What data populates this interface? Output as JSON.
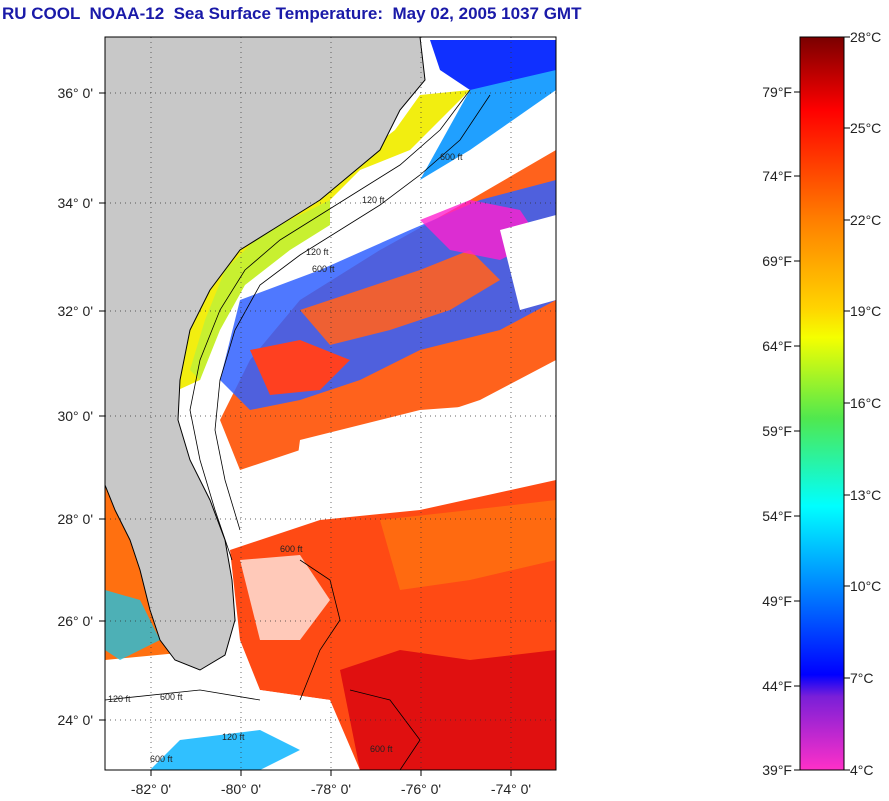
{
  "title": "RU COOL  NOAA-12  Sea Surface Temperature:  May 02, 2005 1037 GMT",
  "map": {
    "lon_range": [
      -83,
      -73
    ],
    "lat_range": [
      23,
      37
    ],
    "lon_ticks": [
      "-82° 0'",
      "-80° 0'",
      "-78° 0'",
      "-76° 0'",
      "-74° 0'"
    ],
    "lat_ticks": [
      "36° 0'",
      "34° 0'",
      "32° 0'",
      "30° 0'",
      "28° 0'",
      "26° 0'",
      "24° 0'"
    ],
    "depth_labels": [
      "120 ft",
      "600 ft",
      "120 ft",
      "600 ft",
      "120 ft",
      "600 ft",
      "600 ft",
      "120 ft",
      "600 ft",
      "600 ft"
    ],
    "colors": {
      "land": "#c8c8c8",
      "cloud": "#ffffff",
      "grid": "#555555"
    }
  },
  "colorbar": {
    "celsius_labels": [
      "28°C",
      "25°C",
      "22°C",
      "19°C",
      "16°C",
      "13°C",
      "10°C",
      "7°C",
      "4°C"
    ],
    "fahrenheit_labels": [
      "79°F",
      "74°F",
      "69°F",
      "64°F",
      "59°F",
      "54°F",
      "49°F",
      "44°F",
      "39°F"
    ],
    "colors": [
      "#7a0000",
      "#ff0000",
      "#ff7f00",
      "#ffd400",
      "#f5ff00",
      "#2ee87a",
      "#00ffff",
      "#0070ff",
      "#0000ff",
      "#ff00ff",
      "#ff30c8"
    ]
  }
}
